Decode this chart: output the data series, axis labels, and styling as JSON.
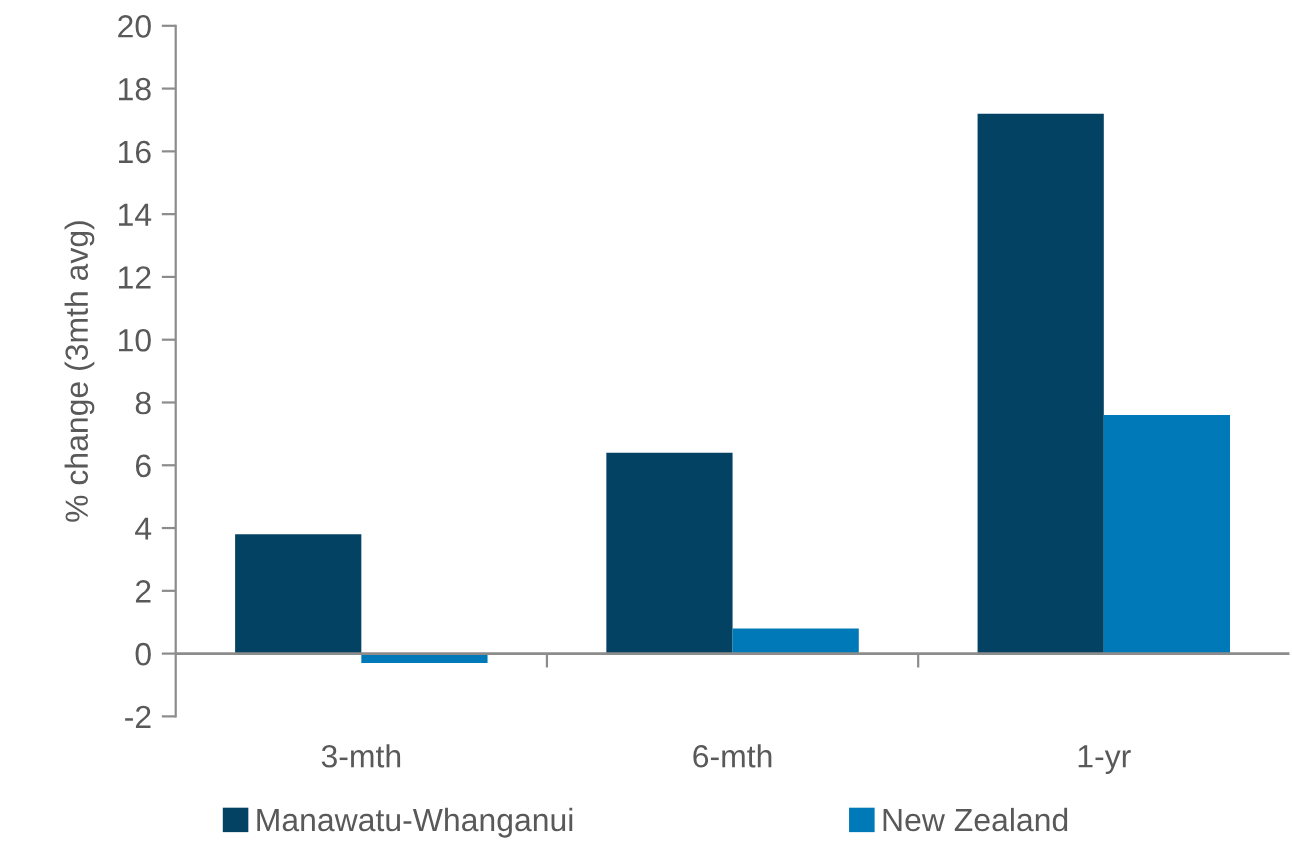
{
  "chart_data": {
    "type": "bar",
    "ylabel": "% change (3mth avg)",
    "categories": [
      "3-mth",
      "6-mth",
      "1-yr"
    ],
    "series": [
      {
        "name": "Manawatu-Whanganui",
        "color": "#034263",
        "values": [
          3.8,
          6.4,
          17.2
        ]
      },
      {
        "name": "New Zealand",
        "color": "#0079b8",
        "values": [
          -0.3,
          0.8,
          7.6
        ]
      }
    ],
    "ylim": [
      -2,
      20
    ],
    "yticks": [
      -2,
      0,
      2,
      4,
      6,
      8,
      10,
      12,
      14,
      16,
      18,
      20
    ],
    "grid": false,
    "legend": "bottom",
    "ref_lines": [
      {
        "axis": "y",
        "value": 0,
        "color": "#8c8c8c"
      }
    ]
  }
}
